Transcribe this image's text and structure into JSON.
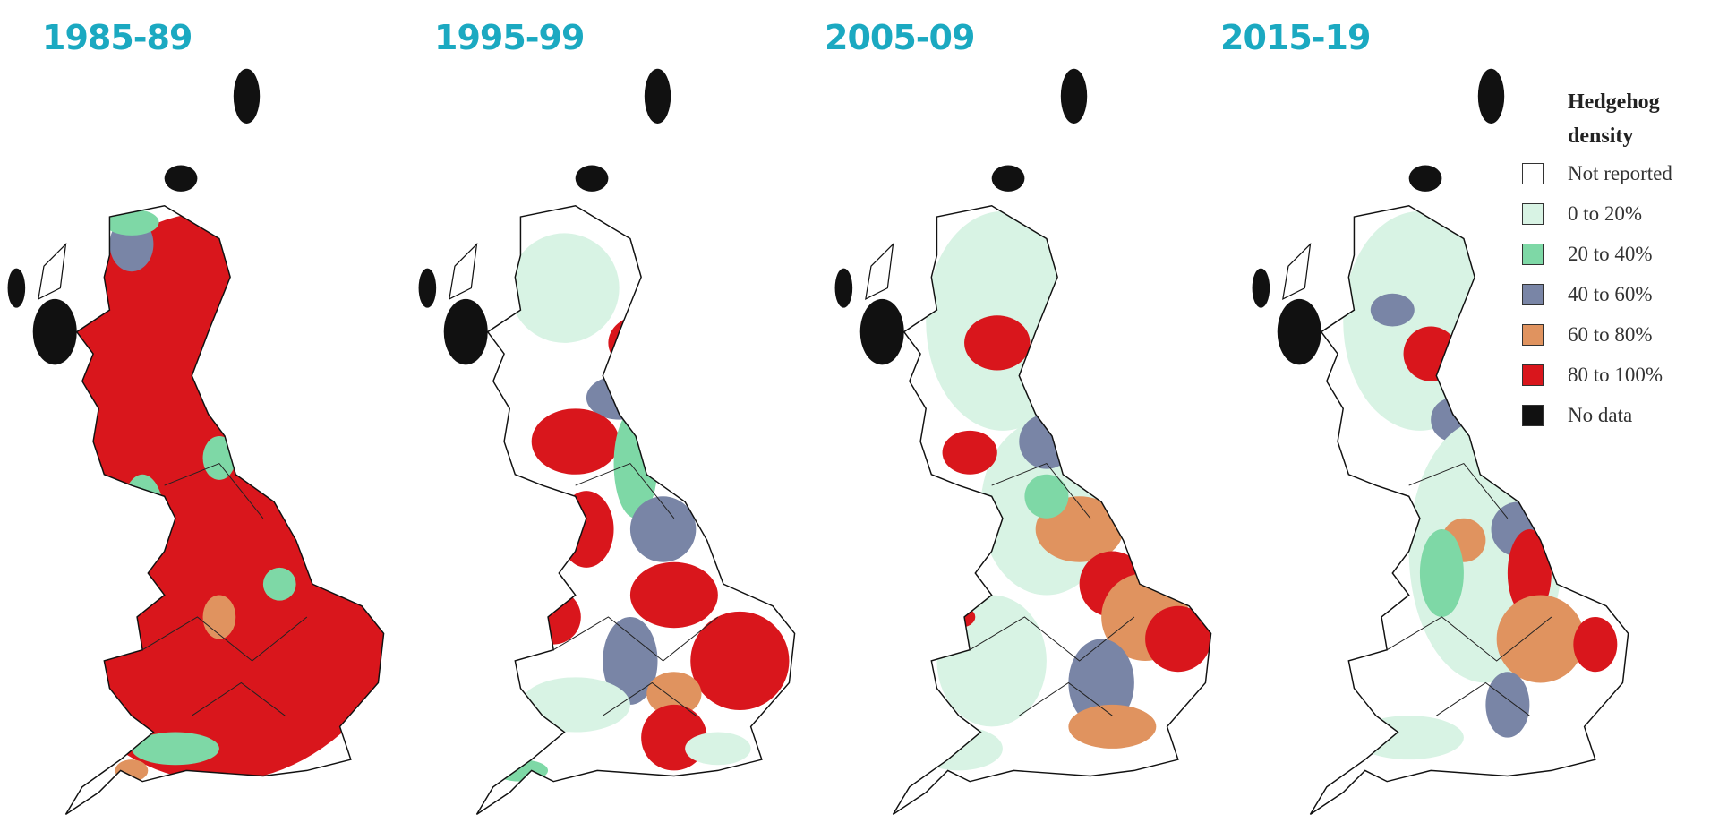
{
  "panels": [
    {
      "title": "1985-89"
    },
    {
      "title": "1995-99"
    },
    {
      "title": "2005-09"
    },
    {
      "title": "2015-19"
    }
  ],
  "legend": {
    "title": "Hedgehog density",
    "items": [
      {
        "label": "Not reported",
        "color": "#ffffff"
      },
      {
        "label": "0 to 20%",
        "color": "#d8f3e4"
      },
      {
        "label": "20 to 40%",
        "color": "#7ed8a6"
      },
      {
        "label": "40 to 60%",
        "color": "#7985a6"
      },
      {
        "label": "60 to 80%",
        "color": "#e0935f"
      },
      {
        "label": "80 to 100%",
        "color": "#d9161c"
      },
      {
        "label": "No data",
        "color": "#111111"
      }
    ]
  }
}
